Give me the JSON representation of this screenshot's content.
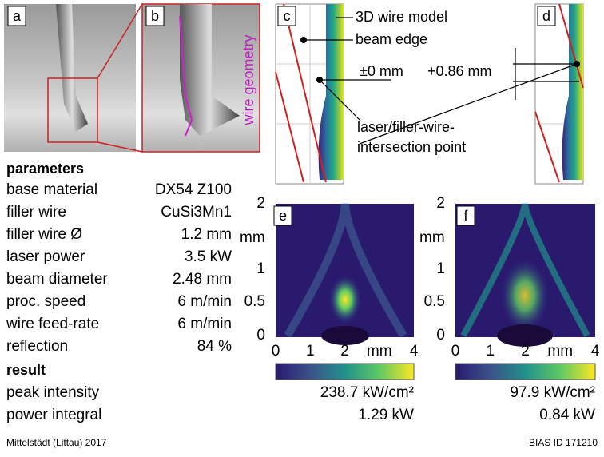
{
  "panels": {
    "labels": [
      "a",
      "b",
      "c",
      "d",
      "e",
      "f"
    ]
  },
  "annotations": {
    "wire_geometry": "wire geometry",
    "wire_model": "3D wire model",
    "beam_edge": "beam edge",
    "offset_c": "±0 mm",
    "offset_d": "+0.86 mm",
    "intersection": [
      "laser/filler-wire-",
      "intersection point"
    ]
  },
  "parameters": {
    "title": "parameters",
    "rows": [
      [
        "base material",
        "DX54 Z100"
      ],
      [
        "filler wire",
        "CuSi3Mn1"
      ],
      [
        "filler wire Ø",
        "1.2 mm"
      ],
      [
        "laser power",
        "3.5 kW"
      ],
      [
        "beam diameter",
        "2.48 mm"
      ],
      [
        "proc. speed",
        "6 m/min"
      ],
      [
        "wire feed-rate",
        "6 m/min"
      ],
      [
        "reflection",
        "84 %"
      ]
    ]
  },
  "result": {
    "title": "result",
    "rows": [
      "peak intensity",
      "power integral"
    ]
  },
  "heatmaps": [
    {
      "yticks": [
        "0",
        "0.5",
        "1",
        "mm",
        "2"
      ],
      "xticks": [
        "0",
        "1",
        "2",
        "mm",
        "4"
      ],
      "peak": "238.7 kW/cm²",
      "power": "1.29 kW"
    },
    {
      "yticks": [
        "0",
        "0.5",
        "1",
        "mm",
        "2"
      ],
      "xticks": [
        "0",
        "1",
        "2",
        "mm",
        "4"
      ],
      "peak": "97.9 kW/cm²",
      "power": "0.84 kW"
    }
  ],
  "footer": {
    "left": "Mittelstädt (Littau) 2017",
    "right": "BIAS ID 171210"
  }
}
